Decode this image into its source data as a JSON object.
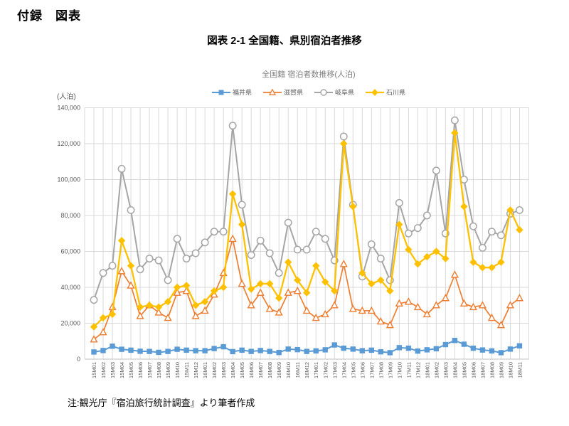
{
  "page": {
    "header": "付録　図表",
    "note": "注:観光庁『宿泊旅行統計調査』より筆者作成"
  },
  "chart": {
    "title": "図表 2-1 全国籍、県別宿泊者推移",
    "subtitle": "全国籍 宿泊者数推移(人泊)",
    "y_unit_label": "(人泊)"
  },
  "chart_data": {
    "type": "line",
    "title": "全国籍 宿泊者数推移(人泊)",
    "xlabel": "",
    "ylabel": "(人泊)",
    "ylim": [
      0,
      140000
    ],
    "y_tick_step": 20000,
    "y_tick_labels": [
      "0",
      "20,000",
      "40,000",
      "60,000",
      "80,000",
      "100,000",
      "120,000",
      "140,000"
    ],
    "grid": true,
    "legend_position": "top",
    "categories": [
      "15M01",
      "15M02",
      "15M03",
      "15M04",
      "15M05",
      "15M06",
      "15M07",
      "15M08",
      "15M09",
      "15M10",
      "15M11",
      "15M12",
      "16M01",
      "16M02",
      "16M03",
      "16M04",
      "16M05",
      "16M06",
      "16M07",
      "16M08",
      "16M09",
      "16M10",
      "16M11",
      "16M12",
      "17M01",
      "17M02",
      "17M03",
      "17M04",
      "17M05",
      "17M06",
      "17M07",
      "17M08",
      "17M09",
      "17M10",
      "17M11",
      "17M12",
      "18M01",
      "18M02",
      "18M03",
      "18M04",
      "18M05",
      "18M06",
      "18M07",
      "18M08",
      "18M09",
      "18M10",
      "18M11"
    ],
    "series": [
      {
        "name": "福井県",
        "color": "#5B9BD5",
        "marker": "square",
        "line_width": 2,
        "values": [
          4000,
          4800,
          7200,
          5500,
          5000,
          4400,
          4300,
          3800,
          4300,
          5500,
          5000,
          4700,
          4700,
          5900,
          6900,
          4200,
          5000,
          4300,
          4800,
          4300,
          3700,
          5600,
          5300,
          4300,
          4600,
          5200,
          7900,
          6100,
          5600,
          4700,
          5000,
          4100,
          3600,
          6400,
          6100,
          4500,
          5200,
          5800,
          8100,
          10400,
          8300,
          6100,
          5100,
          4600,
          3600,
          5600,
          7400
        ]
      },
      {
        "name": "滋賀県",
        "color": "#ED7D31",
        "marker": "triangle-open",
        "line_width": 1.7,
        "values": [
          11000,
          15000,
          29000,
          49000,
          41000,
          24000,
          30000,
          26000,
          23000,
          37000,
          38000,
          24000,
          27000,
          36000,
          48000,
          67000,
          42000,
          30000,
          37000,
          28000,
          26000,
          37000,
          38000,
          27000,
          23000,
          25000,
          30000,
          53000,
          28000,
          27000,
          27000,
          21000,
          19000,
          31000,
          32000,
          29000,
          25000,
          30000,
          34000,
          47000,
          31000,
          29000,
          30000,
          23000,
          19000,
          30000,
          34000
        ]
      },
      {
        "name": "岐阜県",
        "color": "#A5A5A5",
        "marker": "circle-open",
        "line_width": 2,
        "values": [
          33000,
          48000,
          52000,
          106000,
          83000,
          50000,
          56000,
          55000,
          44000,
          67000,
          56000,
          59000,
          65000,
          71000,
          71000,
          130000,
          86000,
          58000,
          66000,
          59000,
          48000,
          76000,
          61000,
          61000,
          71000,
          67000,
          55000,
          124000,
          86000,
          46000,
          64000,
          56000,
          44000,
          87000,
          70000,
          73000,
          80000,
          105000,
          70000,
          133000,
          100000,
          74000,
          62000,
          71000,
          69000,
          81000,
          83000
        ]
      },
      {
        "name": "石川県",
        "color": "#FFC000",
        "marker": "diamond",
        "line_width": 2.3,
        "values": [
          18000,
          23000,
          25000,
          66000,
          52000,
          29000,
          30000,
          29000,
          32000,
          40000,
          41000,
          30000,
          32000,
          38000,
          40000,
          92000,
          75000,
          39000,
          42000,
          42000,
          34000,
          54000,
          44000,
          37000,
          52000,
          43000,
          38000,
          120000,
          85000,
          48000,
          42000,
          44000,
          38000,
          75000,
          61000,
          53000,
          57000,
          60000,
          56000,
          126000,
          85000,
          54000,
          51000,
          51000,
          54000,
          83000,
          72000
        ]
      }
    ]
  }
}
